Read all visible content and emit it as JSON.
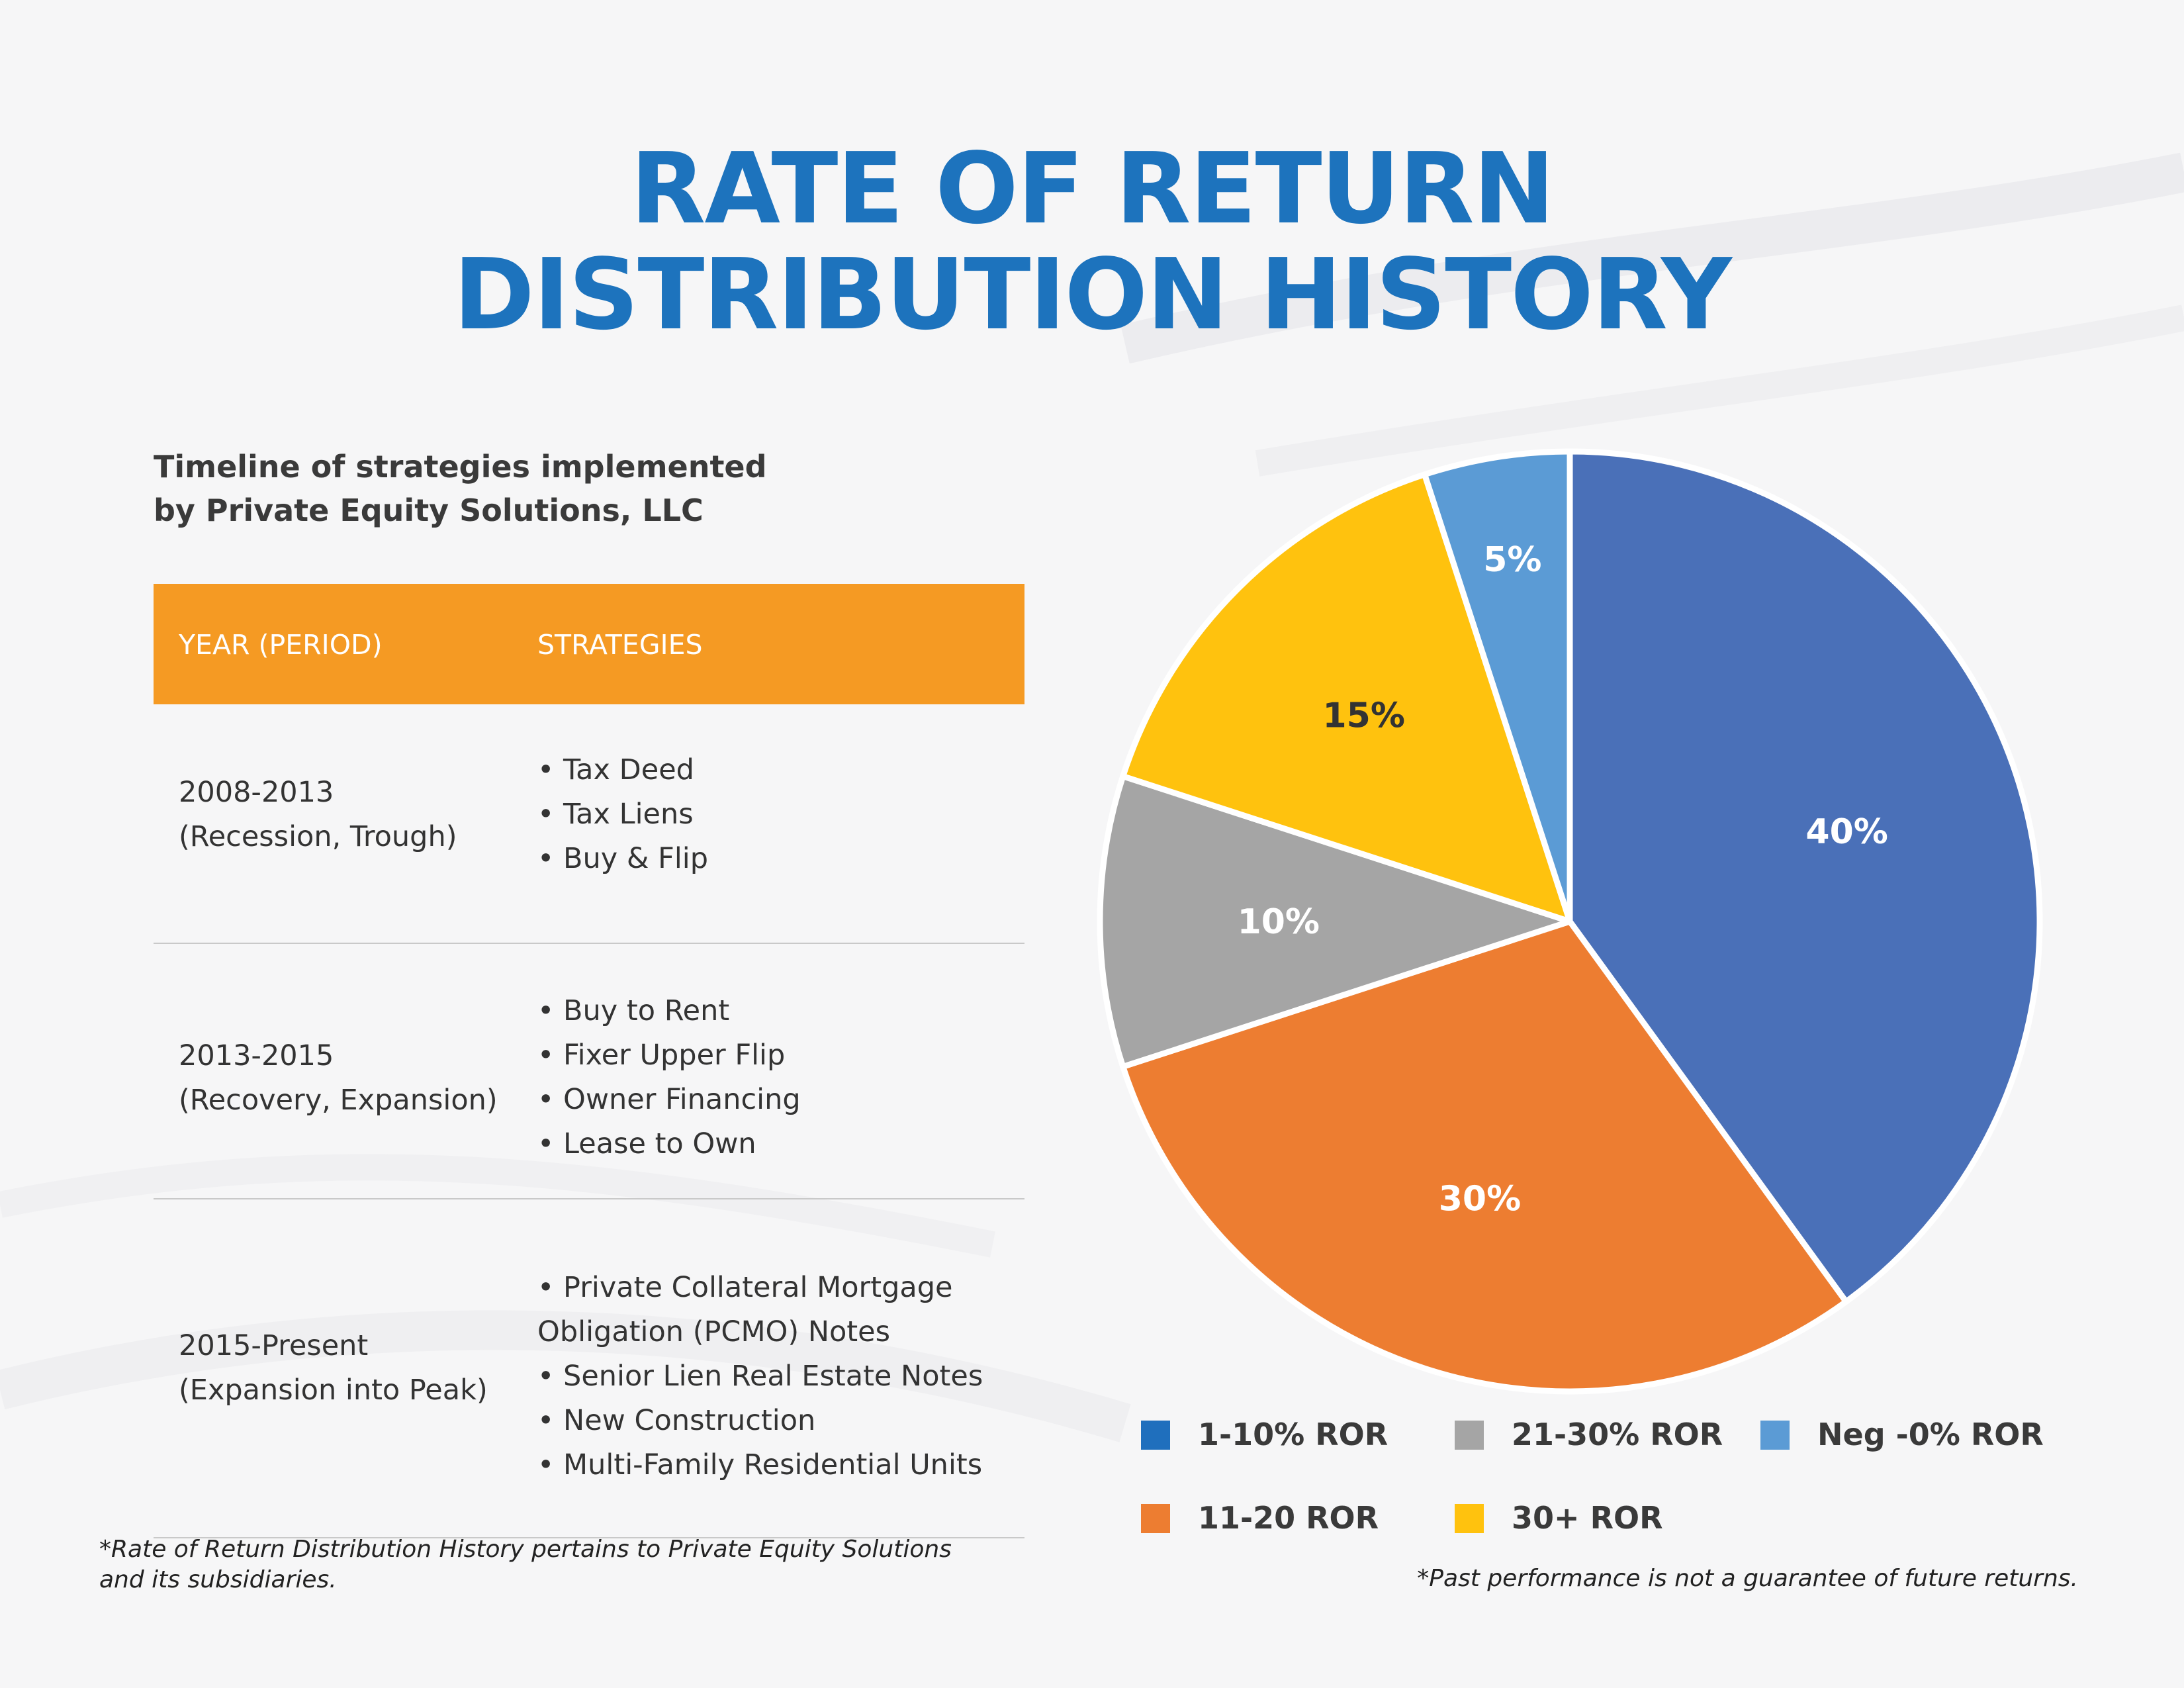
{
  "title": {
    "line1": "RATE OF RETURN",
    "line2": "DISTRIBUTION HISTORY"
  },
  "subtitle": {
    "line1": "Timeline of strategies implemented",
    "line2": "by Private Equity Solutions, LLC"
  },
  "table": {
    "headers": [
      "YEAR (PERIOD)",
      "STRATEGIES"
    ],
    "rows": [
      {
        "year": "2008-2013",
        "period": "(Recession, Trough)",
        "strategies": [
          "• Tax Deed",
          "• Tax Liens",
          "• Buy & Flip"
        ]
      },
      {
        "year": "2013-2015",
        "period": "(Recovery, Expansion)",
        "strategies": [
          "• Buy to Rent",
          "• Fixer Upper Flip",
          "• Owner Financing",
          "• Lease to Own"
        ]
      },
      {
        "year": "2015-Present",
        "period": "(Expansion into Peak)",
        "strategies": [
          "• Private Collateral Mortgage",
          "Obligation (PCMO) Notes",
          "• Senior Lien Real Estate Notes",
          "• New Construction",
          "• Multi-Family Residential Units"
        ]
      }
    ]
  },
  "footnotes": {
    "left_line1": "*Rate of Return Distribution History pertains to Private Equity Solutions",
    "left_line2": "and its subsidiaries.",
    "right": "*Past performance is not a guarantee of future returns."
  },
  "chart_data": {
    "type": "pie",
    "start_angle_deg": 0,
    "direction": "clockwise",
    "slices": [
      {
        "label": "1-10% ROR",
        "value": 40,
        "data_label": "40%",
        "color": "#4a70b8",
        "label_color": "#ffffff"
      },
      {
        "label": "11-20 ROR",
        "value": 30,
        "data_label": "30%",
        "color": "#ed7d31",
        "label_color": "#ffffff"
      },
      {
        "label": "21-30% ROR",
        "value": 10,
        "data_label": "10%",
        "color": "#a5a5a5",
        "label_color": "#ffffff"
      },
      {
        "label": "30+ ROR",
        "value": 15,
        "data_label": "15%",
        "color": "#ffc20e",
        "label_color": "#333333"
      },
      {
        "label": "Neg -0% ROR",
        "value": 5,
        "data_label": "5%",
        "color": "#5b9bd5",
        "label_color": "#ffffff"
      }
    ],
    "legend": [
      {
        "label": "1-10% ROR",
        "color": "#1f6fbd"
      },
      {
        "label": "21-30% ROR",
        "color": "#a5a5a5"
      },
      {
        "label": "Neg -0% ROR",
        "color": "#5b9bd5"
      },
      {
        "label": "11-20 ROR",
        "color": "#ed7d31"
      },
      {
        "label": "30+ ROR",
        "color": "#ffc20e"
      }
    ]
  }
}
